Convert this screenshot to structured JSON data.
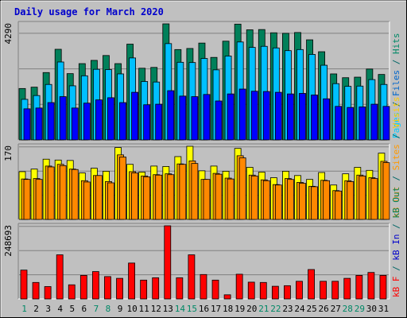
{
  "chart_data": [
    {
      "type": "bar",
      "title": "Daily usage for March 2020",
      "categories": [
        "1",
        "2",
        "3",
        "4",
        "5",
        "6",
        "7",
        "8",
        "9",
        "10",
        "11",
        "12",
        "13",
        "14",
        "15",
        "16",
        "17",
        "18",
        "19",
        "20",
        "21",
        "22",
        "23",
        "24",
        "25",
        "26",
        "27",
        "28",
        "29",
        "30",
        "31"
      ],
      "weekend_days": [
        "1",
        "7",
        "8",
        "14",
        "15",
        "21",
        "22",
        "28",
        "29"
      ],
      "ymax_label": "4290",
      "ylim": [
        0,
        4290
      ],
      "grid": true,
      "right_label_parts": [
        {
          "text": "Pages",
          "color": "#00ccff"
        },
        {
          "text": " / ",
          "color": "#006666"
        },
        {
          "text": "Files",
          "color": "#0066cc"
        },
        {
          "text": " / ",
          "color": "#006666"
        },
        {
          "text": "Hits",
          "color": "#008866"
        }
      ],
      "series": [
        {
          "name": "Hits",
          "color": "#00805a",
          "values": [
            1900,
            1950,
            2490,
            3350,
            2450,
            2820,
            2940,
            3120,
            2820,
            3540,
            2650,
            2680,
            4290,
            3340,
            3380,
            3580,
            3050,
            3650,
            4280,
            4070,
            4080,
            3960,
            3940,
            3970,
            3700,
            3260,
            2440,
            2300,
            2320,
            2620,
            2420
          ]
        },
        {
          "name": "Files",
          "color": "#00c0ff",
          "values": [
            1500,
            1640,
            2050,
            2880,
            2000,
            2370,
            2610,
            2600,
            2440,
            3030,
            2160,
            2140,
            3560,
            2870,
            2860,
            3010,
            2590,
            3100,
            3620,
            3420,
            3460,
            3400,
            3300,
            3340,
            3160,
            2760,
            2080,
            1980,
            1990,
            2230,
            2050
          ]
        },
        {
          "name": "Pages",
          "color": "#0000ff",
          "values": [
            1150,
            1180,
            1380,
            1600,
            1180,
            1360,
            1480,
            1560,
            1380,
            1760,
            1300,
            1320,
            1820,
            1620,
            1600,
            1680,
            1440,
            1700,
            1880,
            1800,
            1790,
            1760,
            1700,
            1720,
            1660,
            1520,
            1240,
            1200,
            1220,
            1320,
            1240
          ]
        }
      ]
    },
    {
      "type": "bar",
      "ymax_label": "170",
      "ylim": [
        0,
        170
      ],
      "grid": true,
      "right_label_parts": [
        {
          "text": "kB Out",
          "color": "#ff8800"
        },
        {
          "text": " / ",
          "color": "#006666"
        },
        {
          "text": "Sites",
          "color": "#ff9900"
        },
        {
          "text": " / ",
          "color": "#006666"
        },
        {
          "text": "Visits",
          "color": "#ffcc00"
        }
      ],
      "series": [
        {
          "name": "Visits",
          "color": "#ffff00",
          "values": [
            111,
            117,
            140,
            138,
            137,
            108,
            119,
            112,
            167,
            128,
            110,
            124,
            123,
            146,
            170,
            113,
            124,
            112,
            165,
            121,
            110,
            97,
            112,
            102,
            93,
            109,
            80,
            106,
            121,
            114,
            154
          ]
        },
        {
          "name": "Sites",
          "color": "#ff9900",
          "values": [
            94,
            95,
            124,
            128,
            117,
            90,
            102,
            88,
            150,
            111,
            101,
            104,
            106,
            129,
            136,
            93,
            107,
            96,
            148,
            103,
            92,
            81,
            95,
            86,
            77,
            91,
            67,
            90,
            103,
            97,
            135
          ]
        },
        {
          "name": "kB Out",
          "color": "#ff8800",
          "values": [
            93,
            93,
            122,
            125,
            116,
            87,
            102,
            85,
            145,
            108,
            99,
            103,
            104,
            128,
            130,
            93,
            105,
            94,
            143,
            101,
            90,
            80,
            93,
            84,
            76,
            90,
            66,
            88,
            101,
            95,
            132
          ]
        }
      ]
    },
    {
      "type": "bar",
      "ymax_label": "248693",
      "ylim": [
        0,
        248693
      ],
      "grid": true,
      "right_label_parts": [
        {
          "text": "kB F",
          "color": "#ff0000"
        },
        {
          "text": " / ",
          "color": "#006666"
        },
        {
          "text": "kB In",
          "color": "#0000cc"
        },
        {
          "text": " / ",
          "color": "#006666"
        },
        {
          "text": "kB Out",
          "color": "#008866"
        }
      ],
      "series": [
        {
          "name": "kB F",
          "color": "#ff0000",
          "values": [
            98000,
            56000,
            42000,
            150000,
            48000,
            80000,
            93000,
            76000,
            70000,
            122000,
            64000,
            72000,
            248693,
            72000,
            150000,
            83000,
            64000,
            14000,
            84000,
            57000,
            56000,
            43000,
            45000,
            60000,
            100000,
            60000,
            60000,
            70000,
            80000,
            90000,
            80000
          ]
        }
      ]
    }
  ]
}
